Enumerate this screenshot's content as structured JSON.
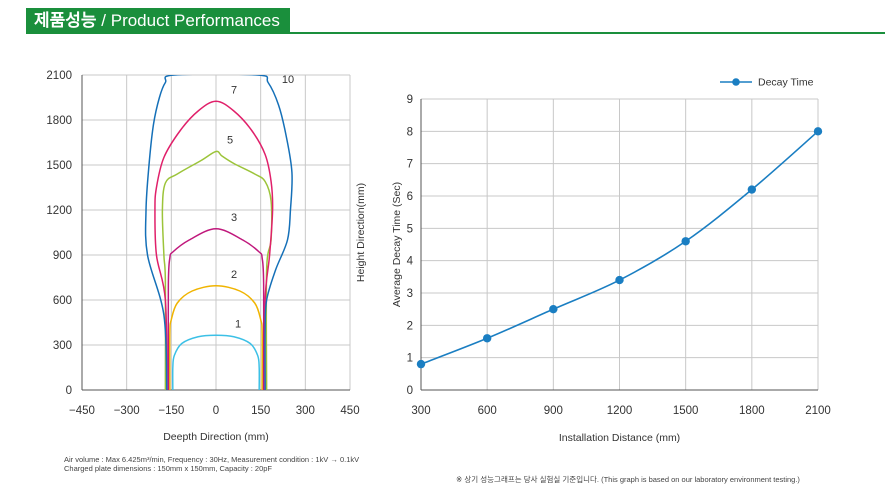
{
  "header": {
    "title_ko": "제품성능",
    "title_en": " / Product Performances"
  },
  "colors": {
    "brand_green": "#1a8f3c",
    "decay_line": "#1a7ec2"
  },
  "chart_data": [
    {
      "type": "line",
      "title": "",
      "xlabel": "Deepth Direction (mm)",
      "ylabel": "Height Direction(mm)",
      "xlim": [
        -450,
        450
      ],
      "ylim": [
        0,
        2100
      ],
      "x_ticks": [
        "−450",
        "−300",
        "−150",
        "0",
        "150",
        "300",
        "450"
      ],
      "y_ticks": [
        "0",
        "300",
        "600",
        "900",
        "1200",
        "1500",
        "1800",
        "2100"
      ],
      "grid": true,
      "series": [
        {
          "name": "1",
          "color": "#3cc0e6",
          "points": [
            [
              -145,
              0
            ],
            [
              -145,
              150
            ],
            [
              -140,
              230
            ],
            [
              -115,
              310
            ],
            [
              -60,
              355
            ],
            [
              0,
              365
            ],
            [
              60,
              355
            ],
            [
              115,
              310
            ],
            [
              140,
              230
            ],
            [
              145,
              150
            ],
            [
              145,
              0
            ]
          ]
        },
        {
          "name": "2",
          "color": "#f0b400",
          "points": [
            [
              -155,
              0
            ],
            [
              -155,
              380
            ],
            [
              -150,
              470
            ],
            [
              -130,
              580
            ],
            [
              -80,
              660
            ],
            [
              0,
              695
            ],
            [
              80,
              660
            ],
            [
              130,
              580
            ],
            [
              150,
              470
            ],
            [
              155,
              380
            ],
            [
              155,
              0
            ]
          ]
        },
        {
          "name": "3",
          "color": "#c0187c",
          "points": [
            [
              -160,
              0
            ],
            [
              -160,
              700
            ],
            [
              -155,
              880
            ],
            [
              -145,
              920
            ],
            [
              -90,
              1000
            ],
            [
              0,
              1075
            ],
            [
              90,
              1000
            ],
            [
              145,
              920
            ],
            [
              155,
              880
            ],
            [
              160,
              700
            ],
            [
              160,
              0
            ]
          ]
        },
        {
          "name": "5",
          "color": "#9cc43a",
          "points": [
            [
              -170,
              0
            ],
            [
              -170,
              720
            ],
            [
              -175,
              900
            ],
            [
              -180,
              1200
            ],
            [
              -170,
              1380
            ],
            [
              -130,
              1440
            ],
            [
              -50,
              1530
            ],
            [
              0,
              1590
            ],
            [
              20,
              1560
            ],
            [
              60,
              1510
            ],
            [
              130,
              1440
            ],
            [
              165,
              1390
            ],
            [
              185,
              1260
            ],
            [
              185,
              1000
            ],
            [
              170,
              800
            ],
            [
              170,
              0
            ]
          ]
        },
        {
          "name": "7",
          "color": "#e0206a",
          "points": [
            [
              -165,
              0
            ],
            [
              -170,
              600
            ],
            [
              -200,
              900
            ],
            [
              -205,
              1200
            ],
            [
              -200,
              1350
            ],
            [
              -175,
              1550
            ],
            [
              -120,
              1730
            ],
            [
              -60,
              1860
            ],
            [
              0,
              1925
            ],
            [
              60,
              1860
            ],
            [
              120,
              1730
            ],
            [
              165,
              1570
            ],
            [
              185,
              1390
            ],
            [
              190,
              1200
            ],
            [
              180,
              900
            ],
            [
              165,
              600
            ],
            [
              165,
              0
            ]
          ]
        },
        {
          "name": "10",
          "color": "#1570b8",
          "points": [
            [
              -165,
              0
            ],
            [
              -175,
              500
            ],
            [
              -230,
              900
            ],
            [
              -235,
              1200
            ],
            [
              -225,
              1500
            ],
            [
              -210,
              1770
            ],
            [
              -190,
              1950
            ],
            [
              -170,
              2050
            ],
            [
              -140,
              2100
            ],
            [
              140,
              2100
            ],
            [
              175,
              2050
            ],
            [
              210,
              1900
            ],
            [
              235,
              1700
            ],
            [
              255,
              1450
            ],
            [
              250,
              1200
            ],
            [
              240,
              1000
            ],
            [
              200,
              800
            ],
            [
              170,
              600
            ],
            [
              165,
              400
            ],
            [
              165,
              0
            ]
          ]
        }
      ]
    },
    {
      "type": "line",
      "title": "",
      "xlabel": "Installation Distance (mm)",
      "ylabel": "Average Decay Time (Sec)",
      "xlim": [
        300,
        2100
      ],
      "ylim": [
        0,
        9
      ],
      "x_ticks": [
        "300",
        "600",
        "900",
        "1200",
        "1500",
        "1800",
        "2100"
      ],
      "y_ticks": [
        "0",
        "1",
        "2",
        "3",
        "4",
        "5",
        "6",
        "7",
        "8",
        "9"
      ],
      "grid": true,
      "legend": "top-right",
      "series": [
        {
          "name": "Decay Time",
          "x": [
            300,
            600,
            900,
            1200,
            1500,
            1800,
            2100
          ],
          "y": [
            0.8,
            1.6,
            2.5,
            3.4,
            4.6,
            6.2,
            8.0
          ]
        }
      ]
    }
  ],
  "footnotes": {
    "line1": "Air volume : Max 6.425m³/min, Frequency : 30Hz, Measurement condition : 1kV → 0.1kV",
    "line2": "Charged plate dimensions : 150mm x 150mm,  Capacity : 20pF",
    "right": "※ 상기 성능그래프는 당사 실험실 기준입니다. (This graph is based on our laboratory environment testing.)"
  }
}
